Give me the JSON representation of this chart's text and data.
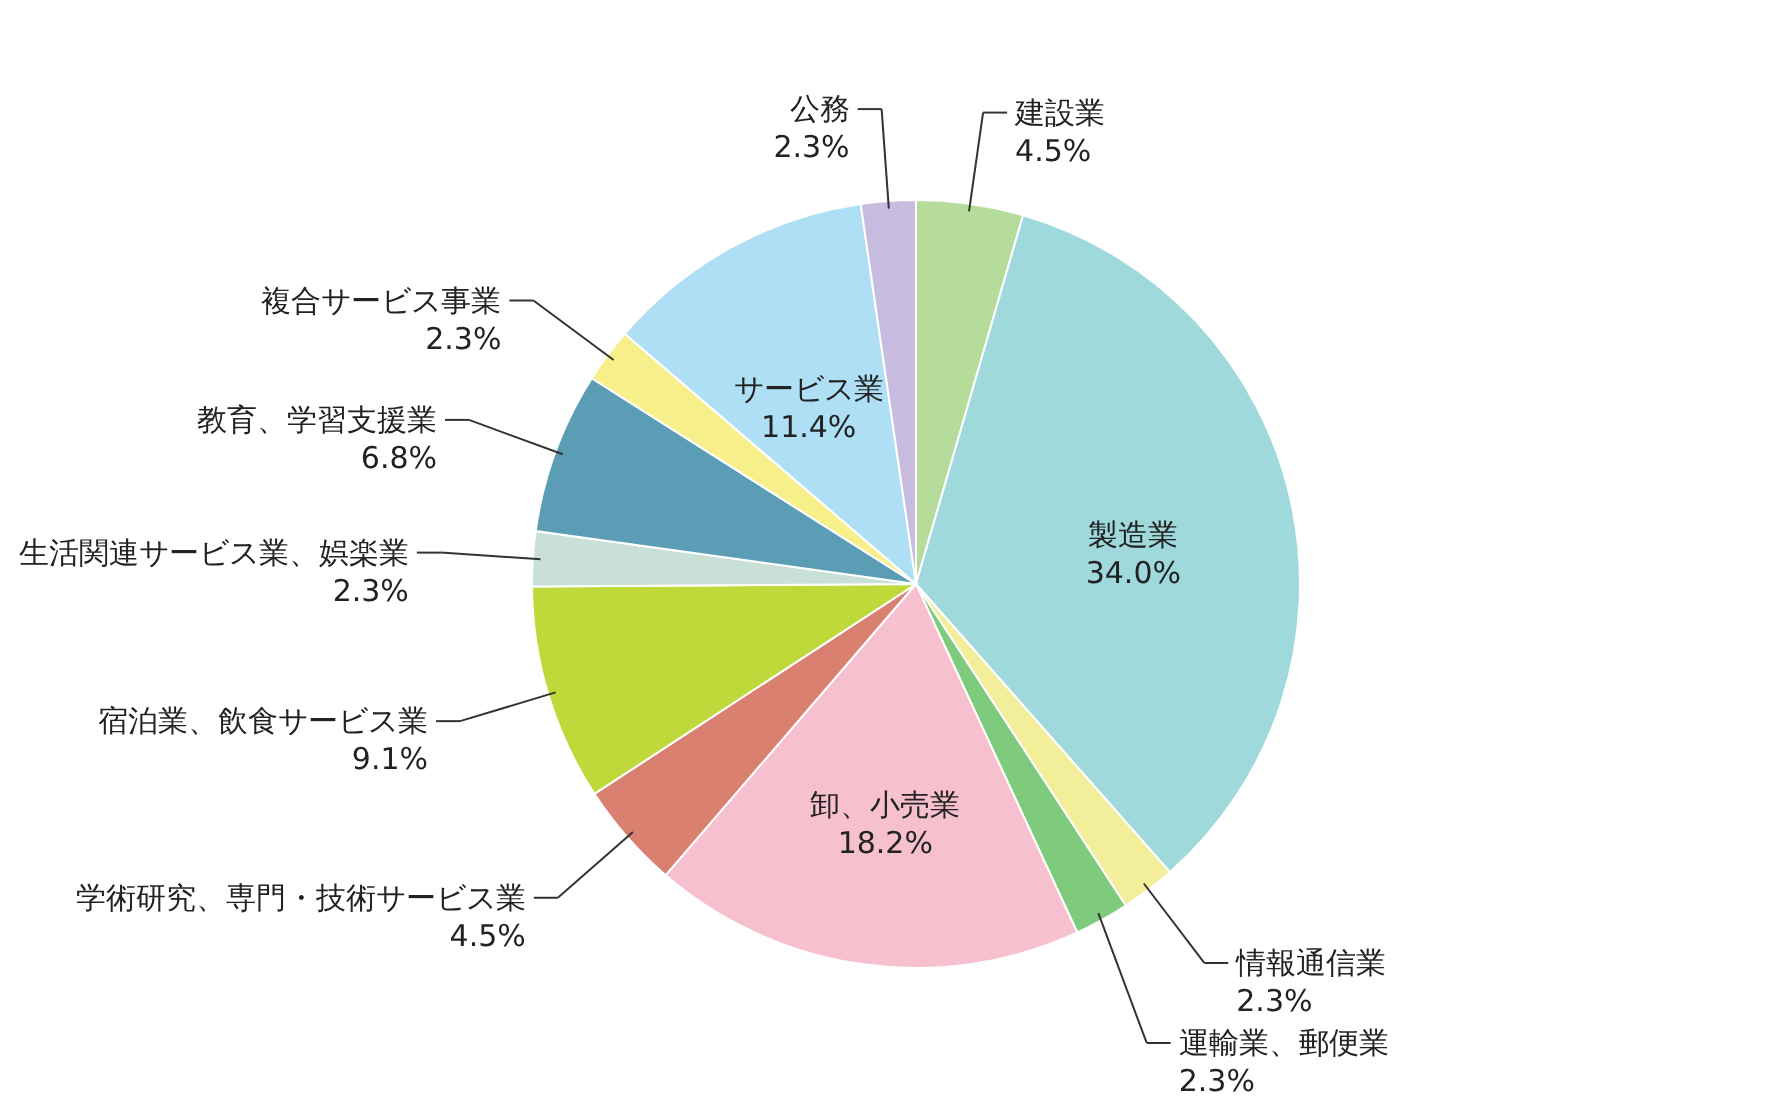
{
  "chart_data": {
    "type": "pie",
    "categories": [
      "建設業",
      "製造業",
      "情報通信業",
      "運輸業、郵便業",
      "卸、小売業",
      "学術研究、専門・技術サービス業",
      "宿泊業、飲食サービス業",
      "生活関連サービス業、娯楽業",
      "教育、学習支援業",
      "複合サービス事業",
      "サービス業",
      "公務"
    ],
    "values": [
      4.5,
      34.0,
      2.3,
      2.3,
      18.2,
      4.5,
      9.1,
      2.3,
      6.8,
      2.3,
      11.4,
      2.3
    ],
    "colors": [
      "#b5dc9a",
      "#9fd9dc",
      "#f2ee9a",
      "#7ecb7e",
      "#f6c0cf",
      "#d98070",
      "#bfd83a",
      "#c8e0d8",
      "#5a9db5",
      "#f7f08a",
      "#aedff5",
      "#c7bce0"
    ],
    "value_labels": [
      "4.5%",
      "34.0%",
      "2.3%",
      "2.3%",
      "18.2%",
      "4.5%",
      "9.1%",
      "2.3%",
      "6.8%",
      "2.3%",
      "11.4%",
      "2.3%"
    ]
  }
}
